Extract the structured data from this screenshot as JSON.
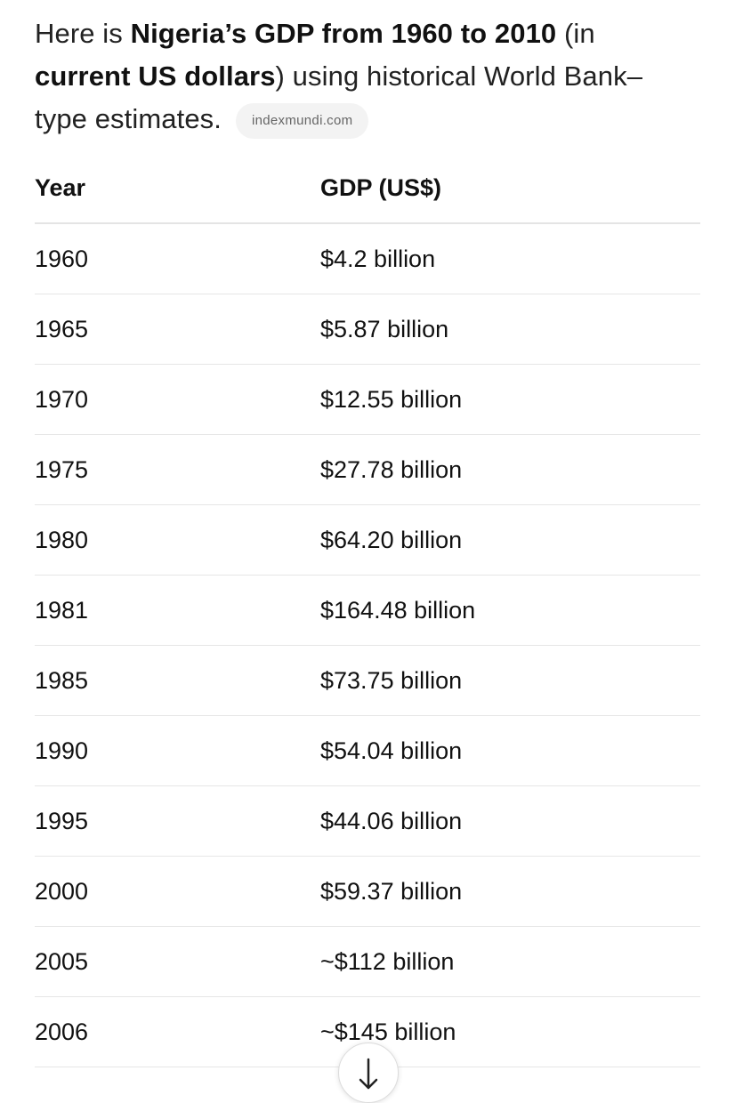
{
  "intro": {
    "prefix": "Here is ",
    "bold1": "Nigeria’s GDP from 1960 to 2010",
    "mid1": " (in ",
    "bold2": "current US dollars",
    "suffix": ") using historical World Bank–type estimates.",
    "source_chip": "indexmundi.com"
  },
  "table": {
    "headers": [
      "Year",
      "GDP (US$)"
    ],
    "rows": [
      {
        "year": "1960",
        "gdp": "$4.2 billion"
      },
      {
        "year": "1965",
        "gdp": "$5.87 billion"
      },
      {
        "year": "1970",
        "gdp": "$12.55 billion"
      },
      {
        "year": "1975",
        "gdp": "$27.78 billion"
      },
      {
        "year": "1980",
        "gdp": "$64.20 billion"
      },
      {
        "year": "1981",
        "gdp": "$164.48 billion"
      },
      {
        "year": "1985",
        "gdp": "$73.75 billion"
      },
      {
        "year": "1990",
        "gdp": "$54.04 billion"
      },
      {
        "year": "1995",
        "gdp": "$44.06 billion"
      },
      {
        "year": "2000",
        "gdp": "$59.37 billion"
      },
      {
        "year": "2005",
        "gdp": "~$112 billion"
      },
      {
        "year": "2006",
        "gdp": "~$145 billion"
      }
    ]
  },
  "scroll_button": {
    "icon": "arrow-down-icon"
  },
  "colors": {
    "text": "#111111",
    "chip_background": "#f3f3f3",
    "chip_text": "#666666",
    "row_divider": "#e6e6e6"
  }
}
